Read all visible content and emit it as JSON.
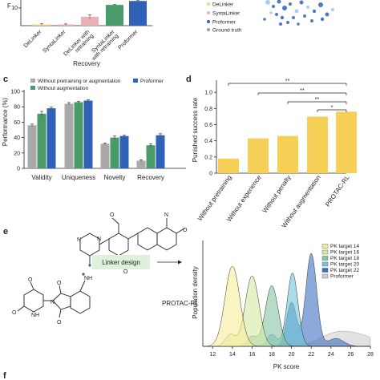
{
  "colors": {
    "delinker": "#f2d28a",
    "syntalinker": "#eab0b5",
    "proformer": "#2f62b6",
    "ground_truth": "#9b9b9b",
    "without_pretraining": "#a9a9a9",
    "without_augmentation": "#4a9a6a",
    "yellow_bar": "#f6cf56",
    "pk14": "#f6ec9a",
    "pk16": "#d4eaa0",
    "pk18": "#86c5a2",
    "pk20": "#72c4d6",
    "pk22": "#3d6fbf",
    "pk_proformer": "#cfcfcf"
  },
  "panel_a": {
    "ylabel_fragment": "F",
    "xlabel": "Recovery",
    "ytick_visible": "10",
    "categories": [
      "DeLinker",
      "SyntaLinker",
      "DeLinker with retraining",
      "SyntaLinker with retraining",
      "Proformer"
    ],
    "category_lines": [
      [
        "DeLinker"
      ],
      [
        "SyntaLinker"
      ],
      [
        "DeLinker with",
        "retraining"
      ],
      [
        "SyntaLinker",
        "with retraining"
      ],
      [
        "Proformer"
      ]
    ]
  },
  "panel_b": {
    "legend": [
      "DeLinker",
      "SyntaLinker",
      "Proformer",
      "Ground truth"
    ]
  },
  "panel_c": {
    "letter": "c",
    "ylabel": "Performance (%)",
    "legend": [
      "Without pretraining or augmentation",
      "Without augmentation",
      "Proformer"
    ],
    "yticks": [
      "0",
      "20",
      "40",
      "60",
      "80",
      "100"
    ]
  },
  "panel_d": {
    "letter": "d",
    "ylabel": "Punished success rate",
    "yticks": [
      "0",
      "0.2",
      "0.4",
      "0.6",
      "0.8",
      "1.0"
    ],
    "significance": [
      "**",
      "**",
      "**",
      "*"
    ]
  },
  "panel_e": {
    "letter": "e",
    "box_label": "Linker design",
    "method_label": "PROTAC-RL",
    "xlabel": "PK score",
    "ylabel": "Population density",
    "xticks": [
      "12",
      "14",
      "16",
      "18",
      "20",
      "22",
      "24",
      "26",
      "28"
    ],
    "legend": [
      "PK target 14",
      "PK target 16",
      "PK target 18",
      "PK target 20",
      "PK target 22",
      "Proformer"
    ]
  },
  "panel_f": {
    "letter": "f"
  },
  "chart_data": [
    {
      "type": "bar",
      "panel": "a",
      "categories": [
        "DeLinker",
        "SyntaLinker",
        "DeLinker with retraining",
        "SyntaLinker with retraining",
        "Proformer"
      ],
      "values": [
        0.6,
        0.6,
        4.5,
        10.5,
        12.5
      ],
      "errors": [
        0.4,
        0.3,
        1.0,
        0.3,
        0.4
      ],
      "xlabel": "Recovery",
      "ylim": [
        0,
        13
      ]
    },
    {
      "type": "bar",
      "panel": "c",
      "categories": [
        "Validity",
        "Uniqueness",
        "Novelty",
        "Recovery"
      ],
      "series": [
        {
          "name": "Without pretraining or augmentation",
          "values": [
            56,
            84,
            32,
            10
          ],
          "errors": [
            1.5,
            1.5,
            1,
            1
          ]
        },
        {
          "name": "Without augmentation",
          "values": [
            71,
            86,
            40,
            30
          ],
          "errors": [
            3,
            1,
            2,
            2
          ]
        },
        {
          "name": "Proformer",
          "values": [
            78,
            88,
            42,
            43
          ],
          "errors": [
            1.5,
            1,
            1,
            2
          ]
        }
      ],
      "ylabel": "Performance (%)",
      "ylim": [
        0,
        100
      ]
    },
    {
      "type": "bar",
      "panel": "d",
      "categories": [
        "Without pretraining",
        "Without experience",
        "Without penalty",
        "Without augmentation",
        "PROTAC-RL"
      ],
      "values": [
        0.18,
        0.43,
        0.46,
        0.7,
        0.76
      ],
      "ylabel": "Punished success rate",
      "ylim": [
        0,
        1.15
      ]
    },
    {
      "type": "area",
      "panel": "e",
      "xlabel": "PK score",
      "ylabel": "Population density",
      "xlim": [
        11,
        28
      ],
      "series": [
        {
          "name": "PK target 14",
          "peaks": [
            [
              14,
              0.82,
              0.75
            ]
          ]
        },
        {
          "name": "PK target 16",
          "peaks": [
            [
              16,
              0.72,
              0.7
            ],
            [
              13.8,
              0.12,
              0.5
            ]
          ]
        },
        {
          "name": "PK target 18",
          "peaks": [
            [
              18,
              0.62,
              0.65
            ],
            [
              16,
              0.1,
              0.5
            ]
          ]
        },
        {
          "name": "PK target 20",
          "peaks": [
            [
              20.1,
              0.75,
              0.55
            ],
            [
              18,
              0.12,
              0.5
            ]
          ]
        },
        {
          "name": "PK target 22",
          "peaks": [
            [
              22,
              0.95,
              0.55
            ],
            [
              20,
              0.45,
              0.5
            ],
            [
              24.5,
              0.08,
              0.8
            ]
          ]
        },
        {
          "name": "Proformer",
          "peaks": [
            [
              26.5,
              0.12,
              2.0
            ],
            [
              24,
              0.08,
              1.5
            ]
          ]
        }
      ]
    }
  ]
}
